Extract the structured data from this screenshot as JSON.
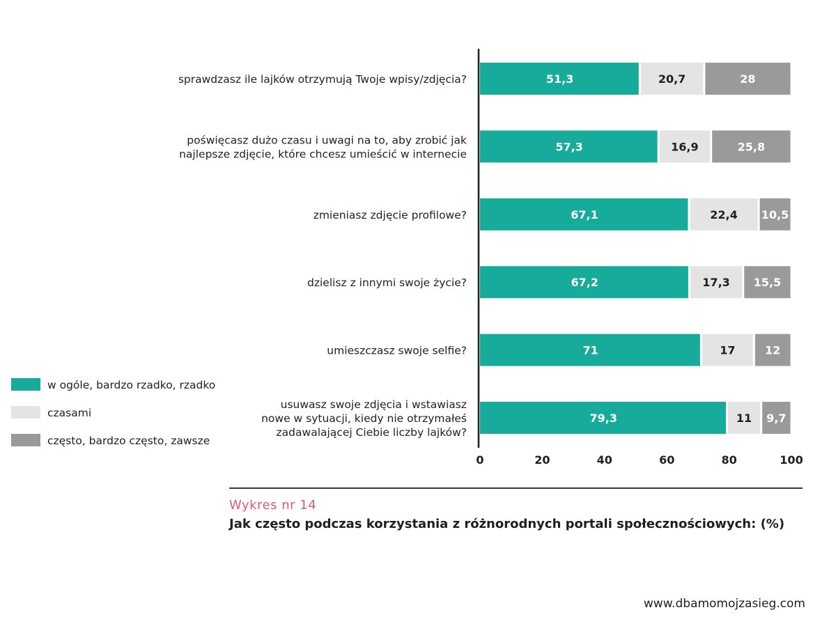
{
  "chart_data": {
    "type": "bar",
    "orientation": "horizontal",
    "stacked": true,
    "title": "Jak często podczas korzystania z różnorodnych portali społecznościowych: (%)",
    "categories": [
      "sprawdzasz ile lajków otrzymują Twoje wpisy/zdjęcia?",
      "poświęcasz dużo czasu i uwagi na to, aby zrobić jak najlepsze zdjęcie, które chcesz umieścić w internecie",
      "zmieniasz zdjęcie profilowe?",
      "dzielisz z innymi swoje życie?",
      "umieszczasz swoje selfie?",
      "usuwasz swoje zdjęcia i wstawiasz nowe w sytuacji, kiedy nie otrzymałeś zadawalającej Ciebie liczby lajków?"
    ],
    "category_lines": [
      [
        "sprawdzasz ile lajków otrzymują Twoje wpisy/zdjęcia?"
      ],
      [
        "poświęcasz dużo czasu i uwagi na to, aby zrobić jak",
        "najlepsze zdjęcie, które chcesz umieścić w internecie"
      ],
      [
        "zmieniasz zdjęcie profilowe?"
      ],
      [
        "dzielisz z innymi swoje życie?"
      ],
      [
        "umieszczasz swoje selfie?"
      ],
      [
        "usuwasz swoje zdjęcia i wstawiasz",
        "nowe w sytuacji, kiedy nie otrzymałeś",
        "zadawalającej Ciebie liczby lajków?"
      ]
    ],
    "series": [
      {
        "name": "w ogóle, bardzo rzadko, rzadko",
        "color": "#17ab9b",
        "label_color": "#ffffff",
        "values": [
          51.3,
          57.3,
          67.1,
          67.2,
          71,
          79.3
        ],
        "labels": [
          "51,3",
          "57,3",
          "67,1",
          "67,2",
          "71",
          "79,3"
        ]
      },
      {
        "name": "czasami",
        "color": "#e4e4e4",
        "label_color": "#1f1f1f",
        "values": [
          20.7,
          16.9,
          22.4,
          17.3,
          17,
          11
        ],
        "labels": [
          "20,7",
          "16,9",
          "22,4",
          "17,3",
          "17",
          "11"
        ]
      },
      {
        "name": "często, bardzo często, zawsze",
        "color": "#9a9a9a",
        "label_color": "#ffffff",
        "values": [
          28,
          25.8,
          10.5,
          15.5,
          12,
          9.7
        ],
        "labels": [
          "28",
          "25,8",
          "10,5",
          "15,5",
          "12",
          "9,7"
        ]
      }
    ],
    "xlim": [
      0,
      100
    ],
    "xticks": [
      0,
      20,
      40,
      60,
      80,
      100
    ],
    "xlabel": "",
    "ylabel": "",
    "grid": false,
    "legend_position": "left"
  },
  "caption": {
    "number": "Wykres nr 14",
    "title": "Jak często podczas korzystania z różnorodnych portali społecznościowych: (%)"
  },
  "footer": {
    "url": "www.dbamomojzasieg.com"
  }
}
